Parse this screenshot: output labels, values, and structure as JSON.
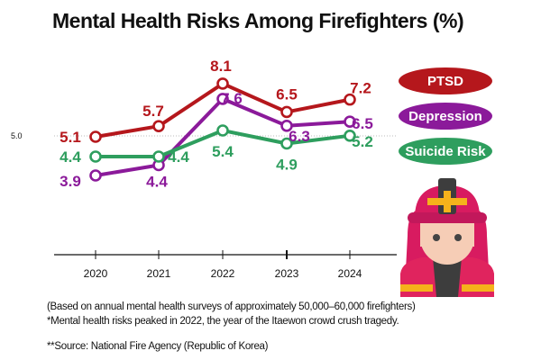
{
  "chart_data": {
    "type": "line",
    "title": "Mental Health Risks Among Firefighters (%)",
    "xlabel": "",
    "ylabel": "",
    "x": [
      "2020",
      "2021",
      "2022",
      "2023",
      "2024"
    ],
    "reference_line": {
      "label": "5.0",
      "value": 5.0
    },
    "grid": false,
    "legend": "right",
    "series": [
      {
        "name": "PTSD",
        "color": "#b5171c",
        "values": [
          5.1,
          5.7,
          8.1,
          6.5,
          7.2
        ],
        "labels": [
          "5.1",
          "5.7",
          "8.1",
          "6.5",
          "7.2"
        ]
      },
      {
        "name": "Depression",
        "color": "#8b1a9a",
        "values": [
          3.9,
          4.4,
          7.6,
          6.3,
          6.5
        ],
        "labels": [
          "3.9",
          "4.4",
          "7.6",
          "6.3",
          "6.5"
        ]
      },
      {
        "name": "Suicide Risk",
        "color": "#2e9e5e",
        "values": [
          4.4,
          4.4,
          5.4,
          4.9,
          5.2
        ],
        "labels": [
          "4.4",
          "4.4",
          "5.4",
          "4.9",
          "5.2"
        ]
      }
    ]
  },
  "notes": {
    "line1": "(Based on annual mental health surveys of approximately 50,000–60,000 firefighters)",
    "line2": "*Mental health risks peaked in 2022, the year of the Itaewon crowd crush tragedy.",
    "source": "**Source: National Fire Agency (Republic of Korea)"
  },
  "illustration": {
    "icon": "firefighter-icon"
  }
}
